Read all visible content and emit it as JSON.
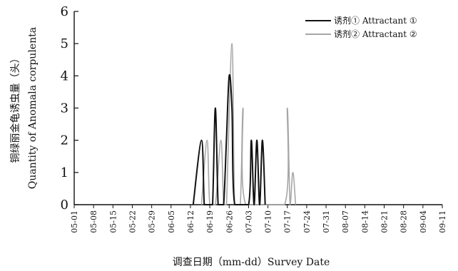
{
  "chart_data": {
    "type": "line",
    "xlabel": "调查日期（mm-dd）Survey Date",
    "ylabel_cn": "铜绿丽金龟诱虫量（头）",
    "ylabel_en": "Quantity of Anomala corpulenta",
    "ylim": [
      0,
      6
    ],
    "yticks": [
      "0",
      "1",
      "2",
      "3",
      "4",
      "5",
      "6"
    ],
    "x_start": "05-01",
    "x_end": "09-11",
    "x_tick_labels": [
      "05-01",
      "05-08",
      "05-15",
      "05-22",
      "05-29",
      "06-05",
      "06-12",
      "06-19",
      "06-26",
      "07-03",
      "07-10",
      "07-17",
      "07-24",
      "07-31",
      "08-07",
      "08-14",
      "08-21",
      "08-28",
      "09-04",
      "09-11"
    ],
    "legend_position": "top-right",
    "grid": false,
    "series": [
      {
        "name": "诱剂① Attractant ①",
        "color": "#111111",
        "x": [
          "06-13",
          "06-16",
          "06-17",
          "06-18",
          "06-19",
          "06-20",
          "06-21",
          "06-22",
          "06-23",
          "06-24",
          "06-25",
          "06-26",
          "06-27",
          "06-28",
          "07-03",
          "07-04",
          "07-05",
          "07-06",
          "07-07",
          "07-08",
          "07-09"
        ],
        "y": [
          0,
          2,
          0,
          0,
          0,
          0,
          3,
          0,
          0,
          0,
          2,
          4,
          3,
          0,
          0,
          2,
          0,
          2,
          0,
          2,
          0
        ]
      },
      {
        "name": "诱剂② Attractant ②",
        "color": "#a6a6a6",
        "x": [
          "06-16",
          "06-18",
          "06-19",
          "06-21",
          "06-23",
          "06-24",
          "06-25",
          "06-27",
          "06-28",
          "06-30",
          "07-01",
          "07-02",
          "07-16",
          "07-17",
          "07-18",
          "07-19",
          "07-20"
        ],
        "y": [
          0,
          2,
          0,
          0,
          2,
          0,
          0,
          5,
          0,
          0,
          3,
          0,
          0,
          3,
          0,
          1,
          0
        ]
      }
    ]
  }
}
